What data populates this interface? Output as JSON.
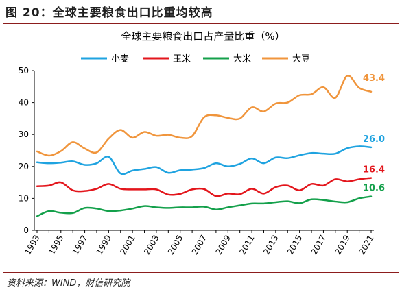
{
  "figure_title": "图 20：全球主要粮食出口比重均较高",
  "source_text": "资料来源：WIND，财信研究院",
  "chart_data": {
    "type": "line",
    "title": "全球主要粮食出口占产量比重（%）",
    "xlabel": "",
    "ylabel": "",
    "ylim": [
      0,
      50
    ],
    "yticks": [
      0,
      10,
      20,
      30,
      40,
      50
    ],
    "xlim": [
      1993,
      2021
    ],
    "xticks": [
      1993,
      1995,
      1997,
      1999,
      2001,
      2003,
      2005,
      2007,
      2009,
      2011,
      2013,
      2015,
      2017,
      2019,
      2021
    ],
    "grid": false,
    "legend_position": "top",
    "x": [
      1993,
      1994,
      1995,
      1996,
      1997,
      1998,
      1999,
      2000,
      2001,
      2002,
      2003,
      2004,
      2005,
      2006,
      2007,
      2008,
      2009,
      2010,
      2011,
      2012,
      2013,
      2014,
      2015,
      2016,
      2017,
      2018,
      2019,
      2020,
      2021
    ],
    "series": [
      {
        "name": "小麦",
        "color": "#1fa3e0",
        "end_label": "26.0",
        "values": [
          21.3,
          21.0,
          21.2,
          21.6,
          20.5,
          21.0,
          23.0,
          17.8,
          18.7,
          19.2,
          19.8,
          18.0,
          18.8,
          19.0,
          19.5,
          21.0,
          20.0,
          20.8,
          22.5,
          21.0,
          22.8,
          22.6,
          23.5,
          24.2,
          24.0,
          24.0,
          25.7,
          26.3,
          26.0
        ]
      },
      {
        "name": "玉米",
        "color": "#e3161c",
        "end_label": "16.4",
        "values": [
          13.8,
          14.0,
          15.0,
          12.5,
          12.3,
          13.0,
          14.5,
          13.0,
          12.8,
          12.8,
          12.8,
          11.2,
          11.4,
          12.8,
          12.9,
          10.7,
          11.5,
          11.3,
          13.0,
          11.5,
          13.5,
          14.0,
          12.5,
          14.5,
          14.0,
          16.0,
          15.3,
          16.0,
          16.4
        ]
      },
      {
        "name": "大米",
        "color": "#14a04b",
        "end_label": "10.6",
        "values": [
          4.4,
          6.0,
          5.5,
          5.4,
          7.0,
          6.8,
          6.0,
          6.2,
          6.8,
          7.6,
          7.2,
          7.0,
          7.2,
          7.2,
          7.4,
          6.5,
          7.2,
          7.8,
          8.4,
          8.4,
          8.8,
          9.1,
          8.5,
          9.7,
          9.5,
          9.0,
          8.8,
          10.0,
          10.6
        ]
      },
      {
        "name": "大豆",
        "color": "#f0953c",
        "end_label": "43.4",
        "values": [
          24.7,
          23.4,
          24.8,
          27.6,
          25.6,
          24.4,
          28.7,
          31.4,
          29.0,
          30.8,
          29.6,
          29.9,
          29.0,
          29.5,
          35.4,
          36.0,
          35.2,
          35.0,
          38.5,
          37.2,
          39.7,
          40.0,
          42.3,
          42.6,
          44.8,
          41.5,
          48.4,
          44.6,
          43.4
        ]
      }
    ]
  }
}
